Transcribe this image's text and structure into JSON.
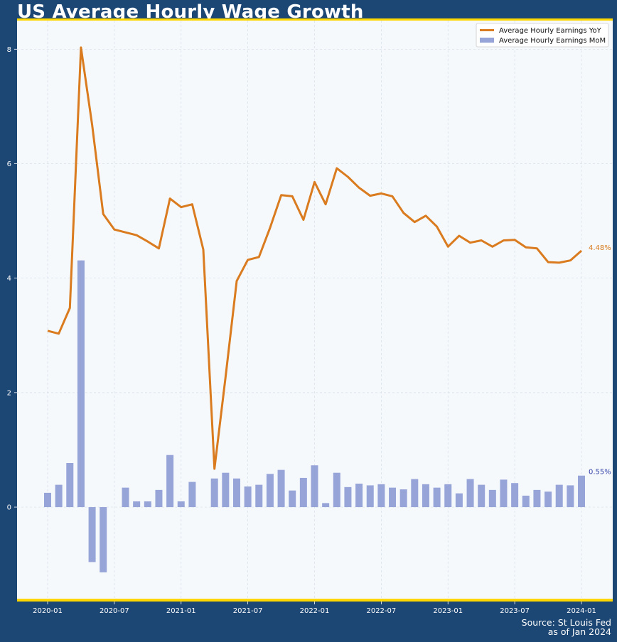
{
  "title": "US Average Hourly Wage Growth",
  "source": {
    "line1": "Source: St Louis Fed",
    "line2": "as of Jan 2024"
  },
  "colors": {
    "background": "#1c4673",
    "plot_bg": "#f5f9fc",
    "accent": "#ffd700",
    "line": "#d97b1e",
    "bar": "#97a4d8",
    "bar_label": "#3544a8"
  },
  "chart_data": {
    "type": "bar",
    "title": "US Average Hourly Wage Growth",
    "xlabel": "",
    "ylabel": "",
    "ylim": [
      -1.6,
      8.5
    ],
    "grid": true,
    "legend_position": "top-right",
    "x_start": "2020-01",
    "x_ticks": [
      "2020-01",
      "2020-07",
      "2021-01",
      "2021-07",
      "2022-01",
      "2022-07",
      "2023-01",
      "2023-07",
      "2024-01"
    ],
    "y_ticks": [
      0,
      2,
      4,
      6,
      8
    ],
    "categories": [
      "2020-01",
      "2020-02",
      "2020-03",
      "2020-04",
      "2020-05",
      "2020-06",
      "2020-07",
      "2020-08",
      "2020-09",
      "2020-10",
      "2020-11",
      "2020-12",
      "2021-01",
      "2021-02",
      "2021-03",
      "2021-04",
      "2021-05",
      "2021-06",
      "2021-07",
      "2021-08",
      "2021-09",
      "2021-10",
      "2021-11",
      "2021-12",
      "2022-01",
      "2022-02",
      "2022-03",
      "2022-04",
      "2022-05",
      "2022-06",
      "2022-07",
      "2022-08",
      "2022-09",
      "2022-10",
      "2022-11",
      "2022-12",
      "2023-01",
      "2023-02",
      "2023-03",
      "2023-04",
      "2023-05",
      "2023-06",
      "2023-07",
      "2023-08",
      "2023-09",
      "2023-10",
      "2023-11",
      "2023-12",
      "2024-01"
    ],
    "series": [
      {
        "name": "Average Hourly Earnings YoY",
        "kind": "line",
        "values": [
          3.08,
          3.03,
          3.48,
          8.03,
          6.68,
          5.12,
          4.85,
          4.8,
          4.75,
          4.64,
          4.52,
          5.39,
          5.24,
          5.29,
          4.5,
          0.67,
          2.27,
          3.95,
          4.32,
          4.37,
          4.88,
          5.45,
          5.43,
          5.02,
          5.68,
          5.29,
          5.92,
          5.77,
          5.58,
          5.44,
          5.48,
          5.43,
          5.14,
          4.98,
          5.09,
          4.9,
          4.55,
          4.74,
          4.62,
          4.66,
          4.55,
          4.66,
          4.67,
          4.54,
          4.52,
          4.28,
          4.27,
          4.31,
          4.48
        ],
        "end_label": "4.48%"
      },
      {
        "name": "Average Hourly Earnings MoM",
        "kind": "bar",
        "values": [
          0.25,
          0.39,
          0.77,
          4.31,
          -0.96,
          -1.14,
          0.0,
          0.34,
          0.1,
          0.1,
          0.3,
          0.91,
          0.1,
          0.44,
          0.0,
          0.5,
          0.6,
          0.5,
          0.36,
          0.39,
          0.58,
          0.65,
          0.29,
          0.51,
          0.73,
          0.07,
          0.6,
          0.35,
          0.41,
          0.38,
          0.4,
          0.34,
          0.31,
          0.49,
          0.4,
          0.34,
          0.4,
          0.24,
          0.49,
          0.39,
          0.3,
          0.48,
          0.42,
          0.2,
          0.3,
          0.27,
          0.39,
          0.38,
          0.55
        ],
        "end_label": "0.55%"
      }
    ]
  }
}
